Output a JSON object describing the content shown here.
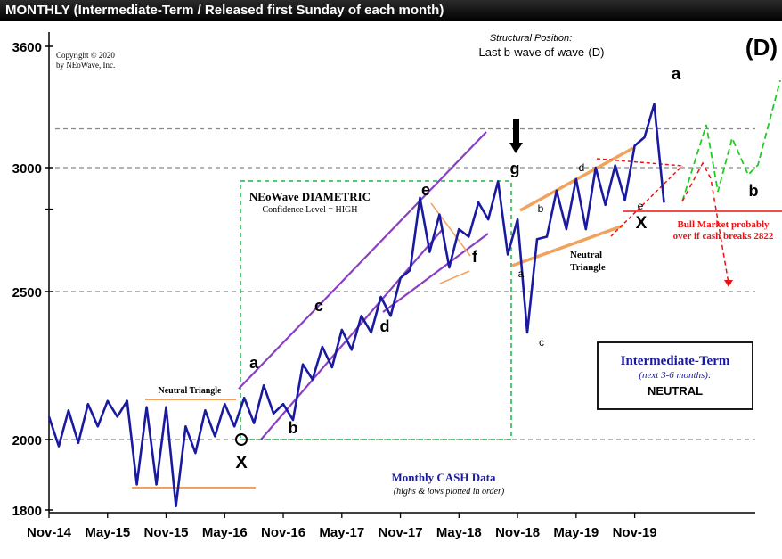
{
  "header": {
    "title": "MONTHLY (Intermediate-Term / Released first Sunday of each month)"
  },
  "chart_data": {
    "type": "line",
    "title": "MONTHLY (Intermediate-Term / Released first Sunday of each month)",
    "x_tick_labels": [
      "Nov-14",
      "May-15",
      "Nov-15",
      "May-16",
      "Nov-16",
      "May-17",
      "Nov-17",
      "May-18",
      "Nov-18",
      "May-19",
      "Nov-19"
    ],
    "y_tick_labels": [
      "1800",
      "2000",
      "2500",
      "3000",
      "3600"
    ],
    "y_scale": "log",
    "ylim": [
      1800,
      3600
    ],
    "grid_lines_dashed": [
      2000,
      2500,
      3000,
      3180
    ],
    "series": [
      {
        "name": "Monthly CASH Data",
        "color": "#1a1aa0",
        "x": [
          "2014-11",
          "2014-12",
          "2015-01",
          "2015-02",
          "2015-03",
          "2015-04",
          "2015-05",
          "2015-06",
          "2015-07",
          "2015-08",
          "2015-09",
          "2015-10",
          "2015-11",
          "2015-12",
          "2016-01",
          "2016-02",
          "2016-03",
          "2016-04",
          "2016-05",
          "2016-06",
          "2016-07",
          "2016-08",
          "2016-09",
          "2016-10",
          "2016-11",
          "2016-12",
          "2017-01",
          "2017-02",
          "2017-03",
          "2017-04",
          "2017-05",
          "2017-06",
          "2017-07",
          "2017-08",
          "2017-09",
          "2017-10",
          "2017-11",
          "2017-12",
          "2018-01",
          "2018-02",
          "2018-03",
          "2018-04",
          "2018-05",
          "2018-06",
          "2018-07",
          "2018-08",
          "2018-09",
          "2018-10",
          "2018-11",
          "2018-12",
          "2019-01",
          "2019-02",
          "2019-03",
          "2019-04",
          "2019-05",
          "2019-06",
          "2019-07",
          "2019-08",
          "2019-09",
          "2019-10",
          "2019-11",
          "2019-12",
          "2020-01",
          "2020-02"
        ],
        "y": [
          2070,
          1980,
          2090,
          1990,
          2110,
          2040,
          2120,
          2070,
          2120,
          1870,
          2100,
          1870,
          2100,
          1810,
          2040,
          1960,
          2090,
          2010,
          2110,
          2040,
          2130,
          2050,
          2170,
          2080,
          2110,
          2060,
          2240,
          2190,
          2300,
          2230,
          2360,
          2290,
          2410,
          2350,
          2480,
          2410,
          2550,
          2580,
          2870,
          2650,
          2800,
          2590,
          2740,
          2710,
          2850,
          2780,
          2940,
          2640,
          2780,
          2350,
          2700,
          2710,
          2900,
          2740,
          2950,
          2740,
          3000,
          2840,
          3010,
          2860,
          3100,
          3140,
          3300,
          2850
        ],
        "sequence_note": "highs & lows plotted in order"
      }
    ],
    "annotations": [
      {
        "text": "Structural Position:"
      },
      {
        "text": "Last b-wave of wave-(D)"
      },
      {
        "text": "(D)"
      },
      {
        "text": "Copyright © 2020"
      },
      {
        "text": "by NEoWave, Inc."
      },
      {
        "text": "NEoWave DIAMETRIC"
      },
      {
        "text": "Confidence Level = HIGH"
      },
      {
        "text": "Neutral Triangle"
      },
      {
        "text": "Neutral"
      },
      {
        "text": "Triangle"
      },
      {
        "text": "Bull Market probably"
      },
      {
        "text": "over if cash breaks 2822"
      },
      {
        "text": "Intermediate-Term"
      },
      {
        "text": "(next 3-6 months):"
      },
      {
        "text": "NEUTRAL"
      },
      {
        "text": "Monthly CASH Data"
      },
      {
        "text": "(highs & lows plotted in order)"
      }
    ],
    "wave_labels": [
      "X",
      "a",
      "b",
      "c",
      "d",
      "e",
      "f",
      "g",
      "a",
      "b",
      "c",
      "d",
      "e",
      "X",
      "a",
      "b"
    ],
    "colors": {
      "price_line": "#1a1aa0",
      "channel": "#8a3fc4",
      "triangle": "#f2a25c",
      "diametric_box": "#1fb34a",
      "projection": "#22cc22",
      "bear_signal": "#ee1111"
    }
  }
}
